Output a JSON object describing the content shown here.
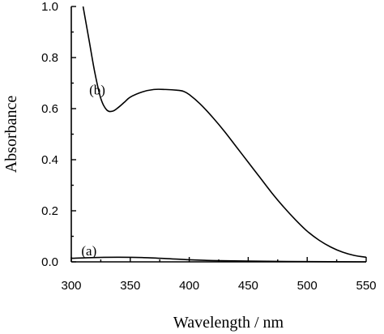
{
  "chart_data": {
    "type": "line",
    "xlabel": "Wavelength / nm",
    "ylabel": "Absorbance",
    "xlim": [
      300,
      550
    ],
    "ylim": [
      0.0,
      1.0
    ],
    "x_ticks": [
      300,
      350,
      400,
      450,
      500,
      550
    ],
    "y_ticks": [
      0.0,
      0.2,
      0.4,
      0.6,
      0.8,
      1.0
    ],
    "x_tick_labels": [
      "300",
      "350",
      "400",
      "450",
      "500",
      "550"
    ],
    "y_tick_labels": [
      "0.0",
      "0.2",
      "0.4",
      "0.6",
      "0.8",
      "1.0"
    ],
    "grid": false,
    "line_color": "#000000",
    "series": [
      {
        "label": "(a)",
        "x": [
          300,
          320,
          340,
          360,
          380,
          400,
          420,
          450,
          500,
          550
        ],
        "y": [
          0.014,
          0.017,
          0.018,
          0.017,
          0.013,
          0.008,
          0.005,
          0.003,
          0.001,
          0.0
        ]
      },
      {
        "label": "(b)",
        "x": [
          310,
          315,
          320,
          325,
          330,
          335,
          340,
          345,
          350,
          360,
          370,
          380,
          390,
          395,
          400,
          410,
          420,
          430,
          440,
          450,
          460,
          470,
          480,
          490,
          500,
          510,
          520,
          530,
          540,
          550
        ],
        "y": [
          1.0,
          0.87,
          0.74,
          0.64,
          0.595,
          0.59,
          0.605,
          0.625,
          0.645,
          0.665,
          0.675,
          0.675,
          0.672,
          0.668,
          0.655,
          0.615,
          0.565,
          0.51,
          0.45,
          0.39,
          0.33,
          0.27,
          0.215,
          0.165,
          0.12,
          0.085,
          0.058,
          0.038,
          0.025,
          0.018
        ]
      }
    ]
  }
}
